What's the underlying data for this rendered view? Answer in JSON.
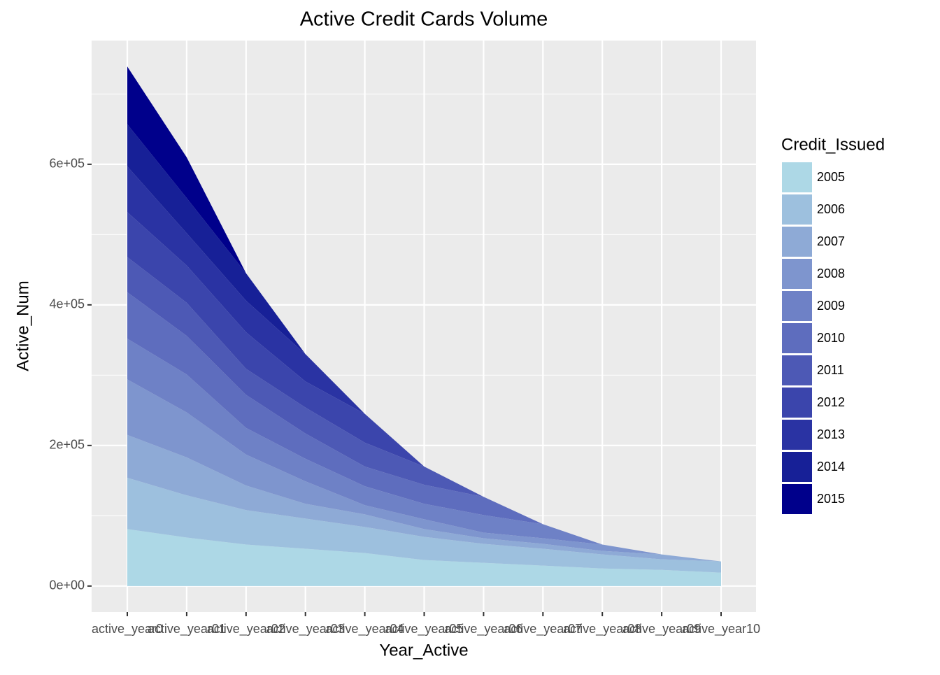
{
  "chart_data": {
    "type": "stacked_area",
    "title": "Active Credit Cards Volume",
    "x_label": "Year_Active",
    "y_label": "Active_Num",
    "legend_title": "Credit_Issued",
    "legend_position": "right",
    "grid": true,
    "categories": [
      "active_year0",
      "active_year01",
      "active_year02",
      "active_year03",
      "active_year04",
      "active_year05",
      "active_year06",
      "active_year07",
      "active_year08",
      "active_year09",
      "active_year10"
    ],
    "ylim": [
      -37000,
      776000
    ],
    "yticks": [
      {
        "value": 0,
        "label": "0e+00"
      },
      {
        "value": 200000,
        "label": "2e+05"
      },
      {
        "value": 400000,
        "label": "4e+05"
      },
      {
        "value": 600000,
        "label": "6e+05"
      }
    ],
    "series": [
      {
        "name": "2005",
        "color": "#add8e6",
        "values": [
          81000,
          69000,
          59000,
          53000,
          47000,
          37000,
          33000,
          29000,
          25000,
          23000,
          19000
        ]
      },
      {
        "name": "2006",
        "color": "#9dc0de",
        "values": [
          73000,
          60000,
          49000,
          43000,
          37000,
          33000,
          27000,
          24000,
          20000,
          15000,
          16000
        ]
      },
      {
        "name": "2007",
        "color": "#8eaad6",
        "values": [
          61000,
          54000,
          35000,
          21000,
          18000,
          11000,
          8000,
          7000,
          5000,
          7000,
          0
        ]
      },
      {
        "name": "2008",
        "color": "#7e95ce",
        "values": [
          79000,
          64000,
          44000,
          32000,
          13000,
          14000,
          8000,
          8000,
          9000,
          0,
          0
        ]
      },
      {
        "name": "2009",
        "color": "#6e81c6",
        "values": [
          58000,
          54000,
          38000,
          32000,
          27000,
          22000,
          25000,
          20000,
          0,
          0,
          0
        ]
      },
      {
        "name": "2010",
        "color": "#5e6dbe",
        "values": [
          66000,
          55000,
          47000,
          36000,
          28000,
          27000,
          26000,
          0,
          0,
          0,
          0
        ]
      },
      {
        "name": "2011",
        "color": "#4d59b5",
        "values": [
          50000,
          47000,
          37000,
          37000,
          34000,
          26000,
          0,
          0,
          0,
          0,
          0
        ]
      },
      {
        "name": "2012",
        "color": "#3b45ac",
        "values": [
          64000,
          53000,
          52000,
          37000,
          41000,
          0,
          0,
          0,
          0,
          0,
          0
        ]
      },
      {
        "name": "2013",
        "color": "#2a33a3",
        "values": [
          65000,
          46000,
          45000,
          39000,
          0,
          0,
          0,
          0,
          0,
          0,
          0
        ]
      },
      {
        "name": "2014",
        "color": "#172097",
        "values": [
          60000,
          50000,
          39000,
          0,
          0,
          0,
          0,
          0,
          0,
          0,
          0
        ]
      },
      {
        "name": "2015",
        "color": "#00008b",
        "values": [
          82000,
          58000,
          0,
          0,
          0,
          0,
          0,
          0,
          0,
          0,
          0
        ]
      }
    ]
  }
}
